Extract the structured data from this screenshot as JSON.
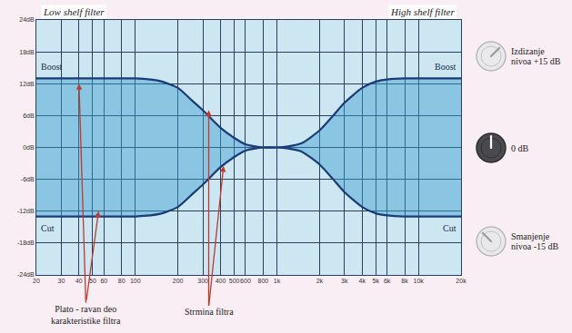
{
  "chart_data": {
    "type": "area",
    "x": [
      20,
      30,
      40,
      50,
      60,
      80,
      100,
      150,
      200,
      250,
      300,
      400,
      500,
      600,
      700,
      800,
      1000,
      1200,
      1500,
      2000,
      2500,
      3000,
      4000,
      5000,
      6000,
      8000,
      10000,
      20000
    ],
    "series": [
      {
        "color": "#1b3a78",
        "values": [
          13,
          13,
          13,
          13,
          13,
          13,
          13,
          12.5,
          11.2,
          8.9,
          7,
          3.7,
          1.8,
          0.6,
          0.2,
          0,
          0,
          0.2,
          0.8,
          3.2,
          6,
          8.4,
          11.2,
          12.4,
          12.8,
          13,
          13,
          13
        ]
      },
      {
        "color": "#1b3a78",
        "values": [
          -13,
          -13,
          -13,
          -13,
          -13,
          -13,
          -13,
          -12.5,
          -11.2,
          -8.9,
          -7,
          -3.7,
          -1.8,
          -0.6,
          -0.2,
          0,
          0,
          -0.2,
          -0.8,
          -3.2,
          -6,
          -8.4,
          -11.2,
          -12.4,
          -12.8,
          -13,
          -13,
          -13
        ]
      }
    ],
    "log": "x",
    "xlim": [
      20,
      20000
    ],
    "xticks": [
      20,
      30,
      40,
      50,
      60,
      80,
      100,
      200,
      300,
      400,
      500,
      600,
      800,
      {
        "value": 1000,
        "label": "1k"
      },
      {
        "value": 2000,
        "label": "2k"
      },
      {
        "value": 3000,
        "label": "3k"
      },
      {
        "value": 4000,
        "label": "4k"
      },
      {
        "value": 5000,
        "label": "5k"
      },
      {
        "value": 6000,
        "label": "6k"
      },
      {
        "value": 8000,
        "label": "8k"
      },
      {
        "value": 10000,
        "label": "10k"
      },
      {
        "value": 20000,
        "label": "20k"
      }
    ],
    "ylim": [
      -24,
      24
    ],
    "yticks": [
      {
        "value": 24,
        "label": "24dB"
      },
      {
        "value": 18,
        "label": "18dB"
      },
      {
        "value": 12,
        "label": "12dB"
      },
      {
        "value": 6,
        "label": "6dB"
      },
      {
        "value": 0,
        "label": "0dB"
      },
      {
        "value": -6,
        "label": "-6dB"
      },
      {
        "value": -12,
        "label": "-12dB"
      },
      {
        "value": -18,
        "label": "-18dB"
      },
      {
        "value": -24,
        "label": "-24dB"
      }
    ],
    "grid": true,
    "annotations": {
      "low_shelf": "Low shelf filter",
      "high_shelf": "High shelf filter",
      "boost": "Boost",
      "cut": "Cut",
      "plateau": [
        "Plato - ravan deo",
        "karakteristike filtra"
      ],
      "slope": "Strmina filtra"
    }
  },
  "knob_labels": [
    [
      "Izdizanje",
      "nivoa +15 dB"
    ],
    [
      "0 dB"
    ],
    [
      "Smanjenje",
      "nivoa -15 dB"
    ]
  ]
}
